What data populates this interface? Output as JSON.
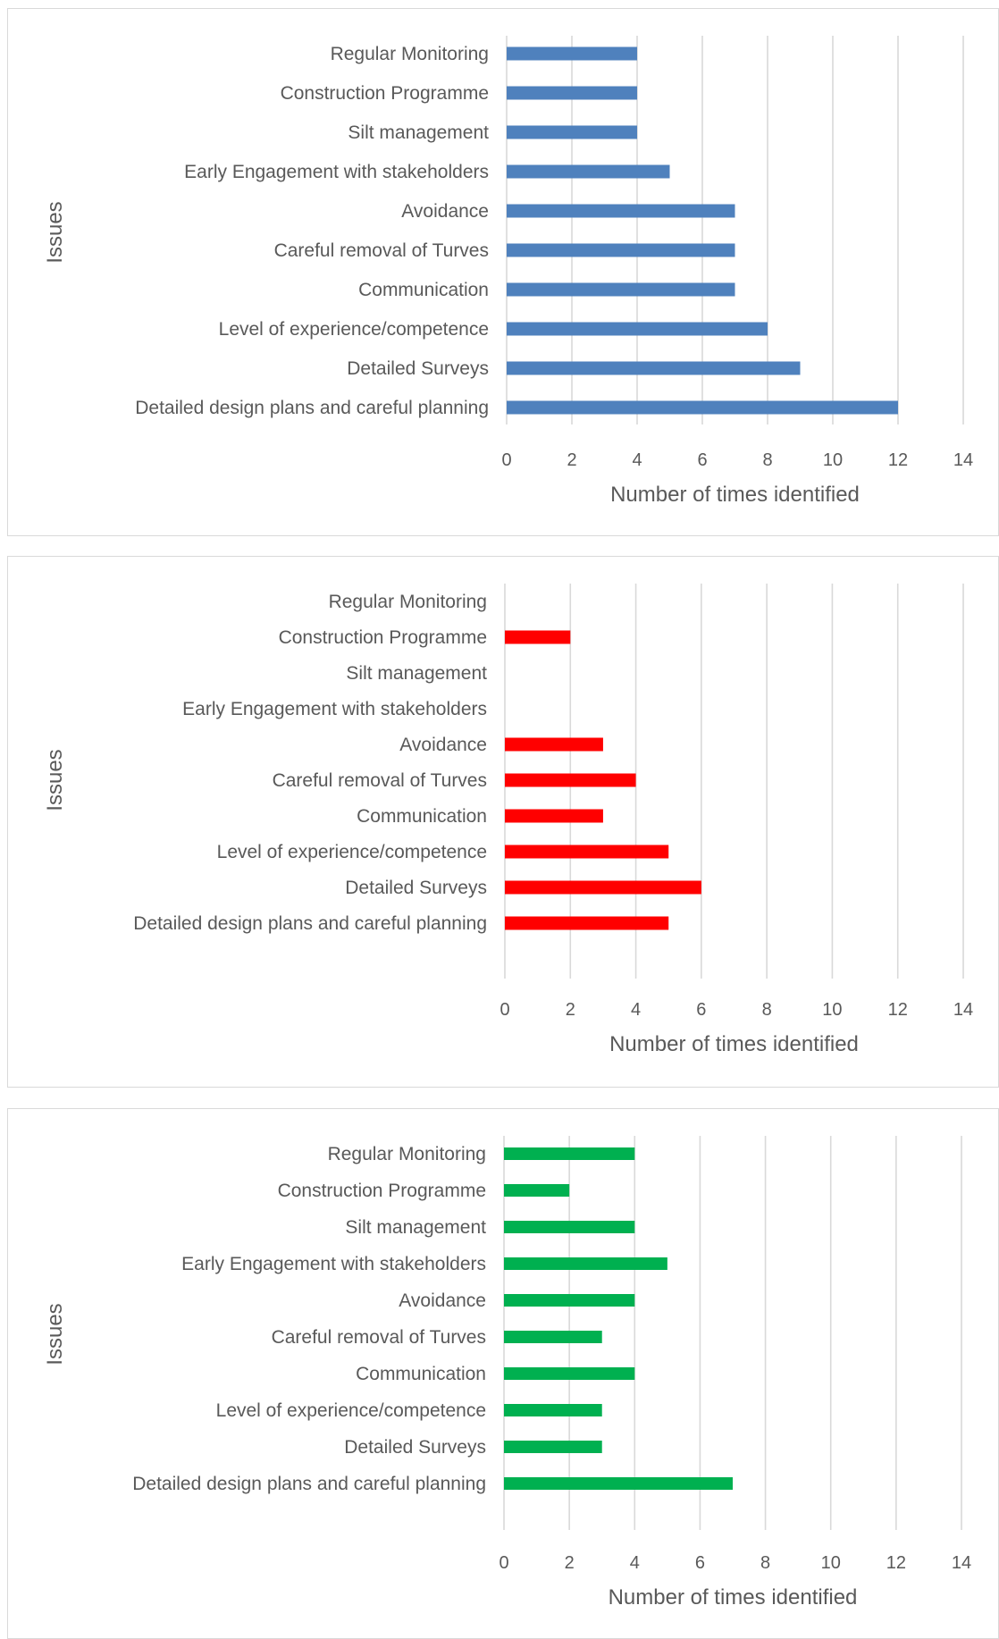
{
  "chart_data": [
    {
      "type": "bar",
      "orientation": "horizontal",
      "categories": [
        "Regular Monitoring",
        "Construction Programme",
        "Silt management",
        "Early Engagement with stakeholders",
        "Avoidance",
        "Careful removal of Turves",
        "Communication",
        "Level of experience/competence",
        "Detailed Surveys",
        "Detailed design plans and careful planning"
      ],
      "values": [
        4,
        4,
        4,
        5,
        7,
        7,
        7,
        8,
        9,
        12
      ],
      "color": "#4f81bd",
      "xlabel": "Number of times identified",
      "ylabel": "Issues",
      "xlim": [
        0,
        14
      ],
      "xticks": [
        "0",
        "2",
        "4",
        "6",
        "8",
        "10",
        "12",
        "14"
      ],
      "grid": true
    },
    {
      "type": "bar",
      "orientation": "horizontal",
      "categories": [
        "Regular Monitoring",
        "Construction Programme",
        "Silt management",
        "Early Engagement with stakeholders",
        "Avoidance",
        "Careful removal of Turves",
        "Communication",
        "Level of experience/competence",
        "Detailed Surveys",
        "Detailed design plans and careful planning"
      ],
      "values": [
        0,
        2,
        0,
        0,
        3,
        4,
        3,
        5,
        6,
        5
      ],
      "color": "#ff0000",
      "xlabel": "Number of times identified",
      "ylabel": "Issues",
      "xlim": [
        0,
        14
      ],
      "xticks": [
        "0",
        "2",
        "4",
        "6",
        "8",
        "10",
        "12",
        "14"
      ],
      "grid": true
    },
    {
      "type": "bar",
      "orientation": "horizontal",
      "categories": [
        "Regular Monitoring",
        "Construction Programme",
        "Silt management",
        "Early Engagement with stakeholders",
        "Avoidance",
        "Careful removal of Turves",
        "Communication",
        "Level of experience/competence",
        "Detailed Surveys",
        "Detailed design plans and careful planning"
      ],
      "values": [
        4,
        2,
        4,
        5,
        4,
        3,
        4,
        3,
        3,
        7
      ],
      "color": "#00b050",
      "xlabel": "Number of times identified",
      "ylabel": "Issues",
      "xlim": [
        0,
        14
      ],
      "xticks": [
        "0",
        "2",
        "4",
        "6",
        "8",
        "10",
        "12",
        "14"
      ],
      "grid": true
    }
  ]
}
